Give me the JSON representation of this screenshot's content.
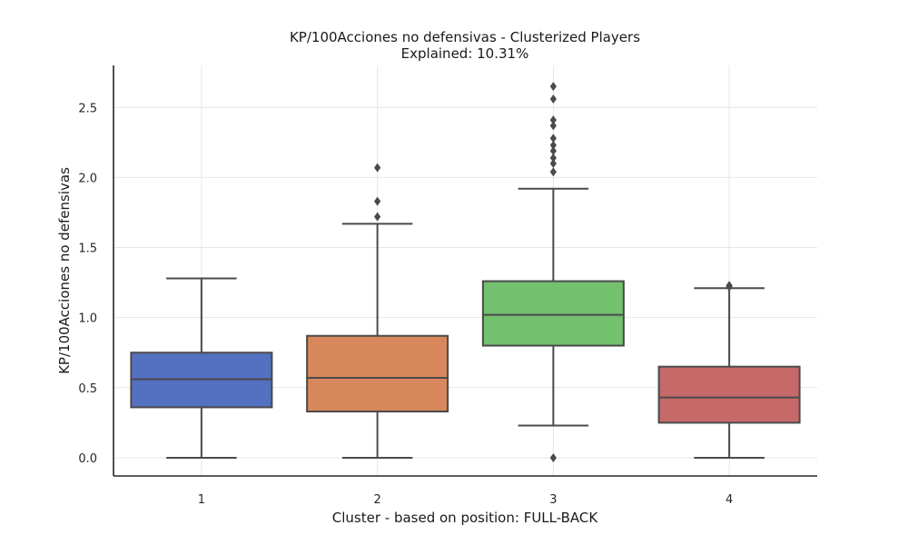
{
  "chart_data": {
    "type": "box",
    "title": "KP/100Acciones no defensivas - Clusterized Players",
    "subtitle": "Explained: 10.31%",
    "xlabel": "Cluster - based on position: FULL-BACK",
    "ylabel": "KP/100Acciones no defensivas",
    "ylim": [
      -0.13,
      2.8
    ],
    "yticks": [
      0.0,
      0.5,
      1.0,
      1.5,
      2.0,
      2.5
    ],
    "ytick_labels": [
      "0.0",
      "0.5",
      "1.0",
      "1.5",
      "2.0",
      "2.5"
    ],
    "grid": true,
    "categories": [
      "1",
      "2",
      "3",
      "4"
    ],
    "boxes": [
      {
        "category": "1",
        "color": "#5470c1",
        "whisker_low": 0.0,
        "q1": 0.36,
        "median": 0.56,
        "q3": 0.75,
        "whisker_high": 1.28,
        "outliers": []
      },
      {
        "category": "2",
        "color": "#d8875c",
        "whisker_low": 0.0,
        "q1": 0.33,
        "median": 0.57,
        "q3": 0.87,
        "whisker_high": 1.67,
        "outliers": [
          1.72,
          1.83,
          2.07
        ]
      },
      {
        "category": "3",
        "color": "#73c06f",
        "whisker_low": 0.23,
        "q1": 0.8,
        "median": 1.02,
        "q3": 1.26,
        "whisker_high": 1.92,
        "outliers": [
          0.0,
          2.04,
          2.1,
          2.14,
          2.19,
          2.23,
          2.28,
          2.37,
          2.41,
          2.56,
          2.65
        ]
      },
      {
        "category": "4",
        "color": "#c56969",
        "whisker_low": 0.0,
        "q1": 0.25,
        "median": 0.43,
        "q3": 0.65,
        "whisker_high": 1.21,
        "outliers": [
          1.22,
          1.23
        ]
      }
    ]
  }
}
